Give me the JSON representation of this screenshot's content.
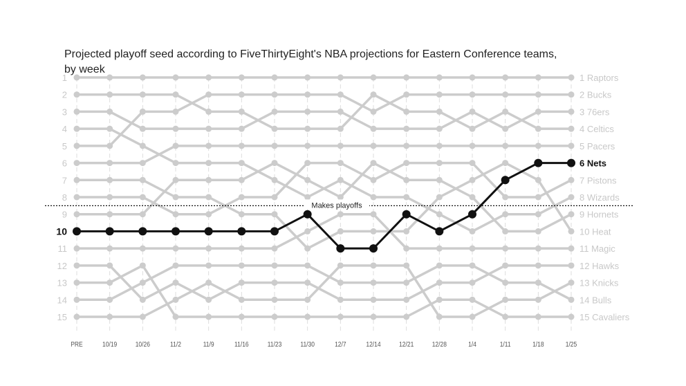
{
  "chart_data": {
    "type": "line",
    "title": "Projected playoff seed according to FiveThirtyEight's NBA projections for Eastern Conference teams, by week",
    "xlabel": "",
    "ylabel": "",
    "x": [
      "PRE",
      "10/19",
      "10/26",
      "11/2",
      "11/9",
      "11/16",
      "11/23",
      "11/30",
      "12/7",
      "12/14",
      "12/21",
      "12/28",
      "1/4",
      "1/11",
      "1/18",
      "1/25"
    ],
    "ylim": [
      1,
      15
    ],
    "y_ticks": [
      1,
      2,
      3,
      4,
      5,
      6,
      7,
      8,
      9,
      10,
      11,
      12,
      13,
      14,
      15
    ],
    "threshold": {
      "label": "Makes playoffs",
      "value": 8.5
    },
    "highlight": "Nets",
    "colors": {
      "highlight": "#111111",
      "others": "#cccccc",
      "axis_text": "#555555"
    },
    "series": [
      {
        "name": "Raptors",
        "values": [
          1,
          1,
          1,
          1,
          1,
          1,
          1,
          1,
          1,
          1,
          1,
          1,
          1,
          1,
          1,
          1
        ]
      },
      {
        "name": "Bucks",
        "values": [
          5,
          5,
          3,
          3,
          2,
          2,
          2,
          2,
          2,
          3,
          2,
          2,
          2,
          2,
          2,
          2
        ]
      },
      {
        "name": "76ers",
        "values": [
          3,
          3,
          4,
          4,
          4,
          4,
          3,
          3,
          3,
          4,
          4,
          4,
          3,
          4,
          3,
          3
        ]
      },
      {
        "name": "Celtics",
        "values": [
          2,
          2,
          2,
          2,
          3,
          3,
          4,
          4,
          4,
          2,
          3,
          3,
          4,
          3,
          4,
          4
        ]
      },
      {
        "name": "Pacers",
        "values": [
          6,
          6,
          6,
          5,
          5,
          5,
          5,
          5,
          5,
          5,
          5,
          5,
          5,
          5,
          5,
          5
        ]
      },
      {
        "name": "Nets",
        "values": [
          10,
          10,
          10,
          10,
          10,
          10,
          10,
          9,
          11,
          11,
          9,
          10,
          9,
          7,
          6,
          6
        ]
      },
      {
        "name": "Pistons",
        "values": [
          8,
          8,
          8,
          9,
          9,
          8,
          8,
          6,
          6,
          7,
          6,
          6,
          6,
          8,
          8,
          7
        ]
      },
      {
        "name": "Wizards",
        "values": [
          4,
          4,
          5,
          6,
          6,
          6,
          7,
          8,
          7,
          8,
          8,
          9,
          10,
          9,
          9,
          8
        ]
      },
      {
        "name": "Hornets",
        "values": [
          9,
          9,
          9,
          7,
          7,
          7,
          6,
          7,
          8,
          6,
          7,
          7,
          8,
          10,
          10,
          9
        ]
      },
      {
        "name": "Heat",
        "values": [
          7,
          7,
          7,
          8,
          8,
          9,
          9,
          11,
          10,
          10,
          10,
          8,
          7,
          6,
          7,
          10
        ]
      },
      {
        "name": "Magic",
        "values": [
          11,
          11,
          11,
          11,
          11,
          11,
          11,
          10,
          9,
          9,
          11,
          11,
          11,
          11,
          11,
          11
        ]
      },
      {
        "name": "Hawks",
        "values": [
          12,
          12,
          14,
          13,
          14,
          13,
          13,
          13,
          14,
          14,
          14,
          13,
          13,
          12,
          12,
          12
        ]
      },
      {
        "name": "Knicks",
        "values": [
          15,
          15,
          15,
          14,
          13,
          14,
          14,
          14,
          12,
          12,
          12,
          15,
          15,
          14,
          14,
          13
        ]
      },
      {
        "name": "Bulls",
        "values": [
          14,
          14,
          13,
          12,
          12,
          12,
          12,
          12,
          13,
          13,
          13,
          12,
          12,
          13,
          13,
          14
        ]
      },
      {
        "name": "Cavaliers",
        "values": [
          13,
          13,
          12,
          15,
          15,
          15,
          15,
          15,
          15,
          15,
          15,
          14,
          14,
          15,
          15,
          15
        ]
      }
    ],
    "end_labels": [
      "1 Raptors",
      "2 Bucks",
      "3 76ers",
      "4 Celtics",
      "5 Pacers",
      "6 Nets",
      "7 Pistons",
      "8 Wizards",
      "9 Hornets",
      "10 Heat",
      "11 Magic",
      "12 Hawks",
      "13 Knicks",
      "14 Bulls",
      "15 Cavaliers"
    ],
    "start_label_highlight": "10"
  }
}
